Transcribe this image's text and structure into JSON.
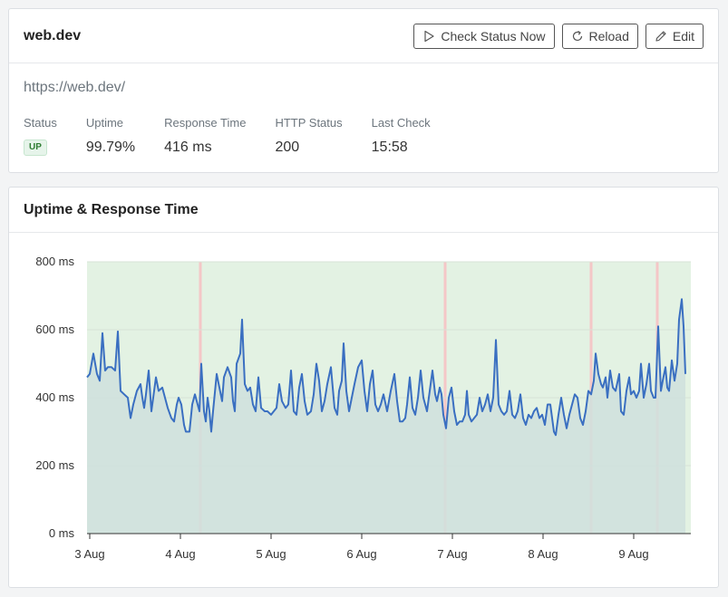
{
  "monitor": {
    "name": "web.dev",
    "url": "https://web.dev/",
    "buttons": {
      "check_status": "Check Status Now",
      "reload": "Reload",
      "edit": "Edit"
    },
    "stats": [
      {
        "label": "Status",
        "value": "UP",
        "kind": "badge"
      },
      {
        "label": "Uptime",
        "value": "99.79%"
      },
      {
        "label": "Response Time",
        "value": "416 ms"
      },
      {
        "label": "HTTP Status",
        "value": "200"
      },
      {
        "label": "Last Check",
        "value": "15:58"
      }
    ]
  },
  "chart_panel": {
    "title": "Uptime & Response Time"
  },
  "colors": {
    "line": "#3a6fc1",
    "area_fill": "#cfe0dd",
    "up_background": "#e3f2e3",
    "down_marker": "#f4c7c7",
    "status_up": "#2e7d32"
  },
  "chart_data": {
    "type": "area",
    "title": "",
    "xlabel": "",
    "ylabel": "",
    "ylim": [
      0,
      800
    ],
    "y_ticks": [
      "0 ms",
      "200 ms",
      "400 ms",
      "600 ms",
      "800 ms"
    ],
    "y_tick_values": [
      0,
      200,
      400,
      600,
      800
    ],
    "x_ticks": [
      "3 Aug",
      "4 Aug",
      "5 Aug",
      "6 Aug",
      "7 Aug",
      "8 Aug",
      "9 Aug"
    ],
    "x_tick_values": [
      0,
      1,
      2,
      3,
      4,
      5,
      6
    ],
    "xlim": [
      -0.03,
      6.63
    ],
    "grid": true,
    "legend": "none",
    "down_periods_x": [
      1.22,
      3.92,
      5.53,
      6.26
    ],
    "series": [
      {
        "values": [
          [
            -0.03,
            460
          ],
          [
            0.0,
            470
          ],
          [
            0.04,
            530
          ],
          [
            0.08,
            470
          ],
          [
            0.11,
            450
          ],
          [
            0.14,
            590
          ],
          [
            0.17,
            480
          ],
          [
            0.2,
            490
          ],
          [
            0.24,
            490
          ],
          [
            0.28,
            480
          ],
          [
            0.31,
            595
          ],
          [
            0.34,
            420
          ],
          [
            0.38,
            410
          ],
          [
            0.42,
            400
          ],
          [
            0.45,
            340
          ],
          [
            0.48,
            380
          ],
          [
            0.52,
            420
          ],
          [
            0.56,
            440
          ],
          [
            0.58,
            400
          ],
          [
            0.6,
            370
          ],
          [
            0.62,
            410
          ],
          [
            0.65,
            480
          ],
          [
            0.68,
            360
          ],
          [
            0.7,
            400
          ],
          [
            0.73,
            460
          ],
          [
            0.76,
            420
          ],
          [
            0.8,
            430
          ],
          [
            0.83,
            400
          ],
          [
            0.86,
            370
          ],
          [
            0.9,
            340
          ],
          [
            0.93,
            330
          ],
          [
            0.96,
            380
          ],
          [
            0.98,
            400
          ],
          [
            1.01,
            380
          ],
          [
            1.04,
            320
          ],
          [
            1.06,
            300
          ],
          [
            1.1,
            300
          ],
          [
            1.13,
            380
          ],
          [
            1.16,
            410
          ],
          [
            1.18,
            390
          ],
          [
            1.21,
            360
          ],
          [
            1.23,
            500
          ],
          [
            1.26,
            360
          ],
          [
            1.28,
            330
          ],
          [
            1.3,
            400
          ],
          [
            1.32,
            360
          ],
          [
            1.34,
            300
          ],
          [
            1.36,
            360
          ],
          [
            1.4,
            470
          ],
          [
            1.43,
            430
          ],
          [
            1.46,
            390
          ],
          [
            1.48,
            460
          ],
          [
            1.52,
            490
          ],
          [
            1.56,
            460
          ],
          [
            1.58,
            390
          ],
          [
            1.6,
            360
          ],
          [
            1.62,
            500
          ],
          [
            1.66,
            530
          ],
          [
            1.68,
            630
          ],
          [
            1.71,
            440
          ],
          [
            1.74,
            420
          ],
          [
            1.77,
            430
          ],
          [
            1.8,
            380
          ],
          [
            1.83,
            360
          ],
          [
            1.86,
            460
          ],
          [
            1.89,
            370
          ],
          [
            1.93,
            360
          ],
          [
            1.96,
            360
          ],
          [
            2.0,
            350
          ],
          [
            2.03,
            360
          ],
          [
            2.06,
            370
          ],
          [
            2.09,
            440
          ],
          [
            2.12,
            390
          ],
          [
            2.16,
            370
          ],
          [
            2.19,
            380
          ],
          [
            2.22,
            480
          ],
          [
            2.25,
            360
          ],
          [
            2.28,
            350
          ],
          [
            2.31,
            430
          ],
          [
            2.34,
            470
          ],
          [
            2.37,
            390
          ],
          [
            2.4,
            350
          ],
          [
            2.44,
            360
          ],
          [
            2.47,
            410
          ],
          [
            2.5,
            500
          ],
          [
            2.53,
            450
          ],
          [
            2.56,
            360
          ],
          [
            2.59,
            390
          ],
          [
            2.62,
            440
          ],
          [
            2.66,
            490
          ],
          [
            2.7,
            370
          ],
          [
            2.73,
            350
          ],
          [
            2.75,
            420
          ],
          [
            2.78,
            450
          ],
          [
            2.8,
            560
          ],
          [
            2.83,
            420
          ],
          [
            2.86,
            360
          ],
          [
            2.89,
            400
          ],
          [
            2.92,
            440
          ],
          [
            2.96,
            490
          ],
          [
            3.0,
            510
          ],
          [
            3.03,
            420
          ],
          [
            3.06,
            360
          ],
          [
            3.09,
            440
          ],
          [
            3.12,
            480
          ],
          [
            3.15,
            380
          ],
          [
            3.18,
            360
          ],
          [
            3.21,
            380
          ],
          [
            3.24,
            410
          ],
          [
            3.28,
            360
          ],
          [
            3.32,
            420
          ],
          [
            3.36,
            470
          ],
          [
            3.39,
            390
          ],
          [
            3.42,
            330
          ],
          [
            3.45,
            330
          ],
          [
            3.48,
            340
          ],
          [
            3.5,
            380
          ],
          [
            3.53,
            460
          ],
          [
            3.56,
            370
          ],
          [
            3.59,
            350
          ],
          [
            3.62,
            400
          ],
          [
            3.65,
            480
          ],
          [
            3.68,
            400
          ],
          [
            3.72,
            360
          ],
          [
            3.75,
            420
          ],
          [
            3.78,
            480
          ],
          [
            3.81,
            410
          ],
          [
            3.83,
            390
          ],
          [
            3.86,
            430
          ],
          [
            3.88,
            410
          ],
          [
            3.9,
            350
          ],
          [
            3.93,
            310
          ],
          [
            3.96,
            400
          ],
          [
            3.99,
            430
          ],
          [
            4.02,
            360
          ],
          [
            4.05,
            320
          ],
          [
            4.08,
            330
          ],
          [
            4.11,
            330
          ],
          [
            4.14,
            350
          ],
          [
            4.16,
            420
          ],
          [
            4.18,
            350
          ],
          [
            4.21,
            330
          ],
          [
            4.24,
            340
          ],
          [
            4.27,
            350
          ],
          [
            4.3,
            400
          ],
          [
            4.33,
            360
          ],
          [
            4.36,
            380
          ],
          [
            4.39,
            410
          ],
          [
            4.42,
            360
          ],
          [
            4.45,
            400
          ],
          [
            4.48,
            570
          ],
          [
            4.51,
            380
          ],
          [
            4.54,
            360
          ],
          [
            4.57,
            350
          ],
          [
            4.6,
            360
          ],
          [
            4.63,
            420
          ],
          [
            4.66,
            350
          ],
          [
            4.69,
            340
          ],
          [
            4.72,
            360
          ],
          [
            4.75,
            410
          ],
          [
            4.78,
            340
          ],
          [
            4.81,
            320
          ],
          [
            4.84,
            350
          ],
          [
            4.87,
            340
          ],
          [
            4.9,
            360
          ],
          [
            4.93,
            370
          ],
          [
            4.96,
            340
          ],
          [
            4.99,
            350
          ],
          [
            5.02,
            320
          ],
          [
            5.05,
            380
          ],
          [
            5.08,
            380
          ],
          [
            5.1,
            340
          ],
          [
            5.12,
            300
          ],
          [
            5.14,
            290
          ],
          [
            5.17,
            350
          ],
          [
            5.2,
            400
          ],
          [
            5.23,
            350
          ],
          [
            5.26,
            310
          ],
          [
            5.29,
            350
          ],
          [
            5.32,
            380
          ],
          [
            5.35,
            410
          ],
          [
            5.38,
            400
          ],
          [
            5.41,
            340
          ],
          [
            5.44,
            320
          ],
          [
            5.47,
            360
          ],
          [
            5.5,
            420
          ],
          [
            5.53,
            410
          ],
          [
            5.56,
            450
          ],
          [
            5.58,
            530
          ],
          [
            5.61,
            470
          ],
          [
            5.64,
            440
          ],
          [
            5.66,
            430
          ],
          [
            5.69,
            460
          ],
          [
            5.71,
            400
          ],
          [
            5.74,
            480
          ],
          [
            5.77,
            430
          ],
          [
            5.8,
            420
          ],
          [
            5.84,
            470
          ],
          [
            5.86,
            360
          ],
          [
            5.89,
            350
          ],
          [
            5.92,
            420
          ],
          [
            5.95,
            460
          ],
          [
            5.97,
            410
          ],
          [
            6.0,
            420
          ],
          [
            6.03,
            400
          ],
          [
            6.06,
            420
          ],
          [
            6.08,
            500
          ],
          [
            6.11,
            400
          ],
          [
            6.14,
            440
          ],
          [
            6.17,
            500
          ],
          [
            6.19,
            420
          ],
          [
            6.22,
            400
          ],
          [
            6.24,
            400
          ],
          [
            6.27,
            610
          ],
          [
            6.3,
            420
          ],
          [
            6.32,
            450
          ],
          [
            6.35,
            490
          ],
          [
            6.37,
            430
          ],
          [
            6.39,
            420
          ],
          [
            6.42,
            510
          ],
          [
            6.45,
            450
          ],
          [
            6.48,
            500
          ],
          [
            6.5,
            630
          ],
          [
            6.53,
            690
          ],
          [
            6.55,
            610
          ],
          [
            6.57,
            470
          ]
        ]
      }
    ]
  }
}
